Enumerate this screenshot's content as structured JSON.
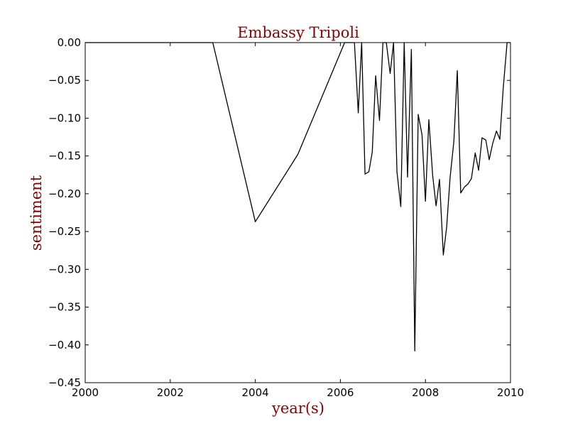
{
  "chart_data": {
    "type": "line",
    "title": "Embassy Tripoli",
    "xlabel": "year(s)",
    "ylabel": "sentiment",
    "xlim": [
      2000,
      2010
    ],
    "ylim": [
      -0.45,
      0.0
    ],
    "x_ticks": [
      2000,
      2002,
      2004,
      2006,
      2008,
      2010
    ],
    "x_tick_labels": [
      "2000",
      "2002",
      "2004",
      "2006",
      "2008",
      "2010"
    ],
    "y_ticks": [
      0.0,
      -0.05,
      -0.1,
      -0.15,
      -0.2,
      -0.25,
      -0.3,
      -0.35,
      -0.4,
      -0.45
    ],
    "y_tick_labels": [
      "0.00",
      "−0.05",
      "−0.10",
      "−0.15",
      "−0.20",
      "−0.25",
      "−0.30",
      "−0.35",
      "−0.40",
      "−0.45"
    ],
    "grid": false,
    "line_color": "#000000",
    "title_color": "#8b0000",
    "series": [
      {
        "x": [
          2000.0,
          2003.0,
          2004.0,
          2005.0,
          2006.1,
          2006.33,
          2006.42,
          2006.5,
          2006.58,
          2006.67,
          2006.75,
          2006.83,
          2006.92,
          2007.0,
          2007.08,
          2007.17,
          2007.25,
          2007.33,
          2007.42,
          2007.5,
          2007.58,
          2007.67,
          2007.75,
          2007.83,
          2007.92,
          2008.0,
          2008.08,
          2008.17,
          2008.25,
          2008.33,
          2008.42,
          2008.5,
          2008.58,
          2008.67,
          2008.75,
          2008.83,
          2008.92,
          2009.0,
          2009.08,
          2009.17,
          2009.25,
          2009.33,
          2009.42,
          2009.5,
          2009.58,
          2009.67,
          2009.75,
          2009.83,
          2009.92,
          2010.0
        ],
        "y": [
          0.0,
          0.0,
          -0.237,
          -0.148,
          0.0,
          0.0,
          -0.093,
          0.0,
          -0.174,
          -0.171,
          -0.145,
          -0.044,
          -0.103,
          0.0,
          0.0,
          -0.041,
          0.0,
          -0.171,
          -0.217,
          0.0,
          -0.178,
          -0.009,
          -0.408,
          -0.095,
          -0.122,
          -0.21,
          -0.102,
          -0.176,
          -0.216,
          -0.181,
          -0.281,
          -0.244,
          -0.179,
          -0.13,
          -0.037,
          -0.199,
          -0.191,
          -0.187,
          -0.18,
          -0.146,
          -0.169,
          -0.126,
          -0.129,
          -0.155,
          -0.134,
          -0.117,
          -0.128,
          -0.06,
          0.0,
          0.0
        ]
      }
    ]
  }
}
